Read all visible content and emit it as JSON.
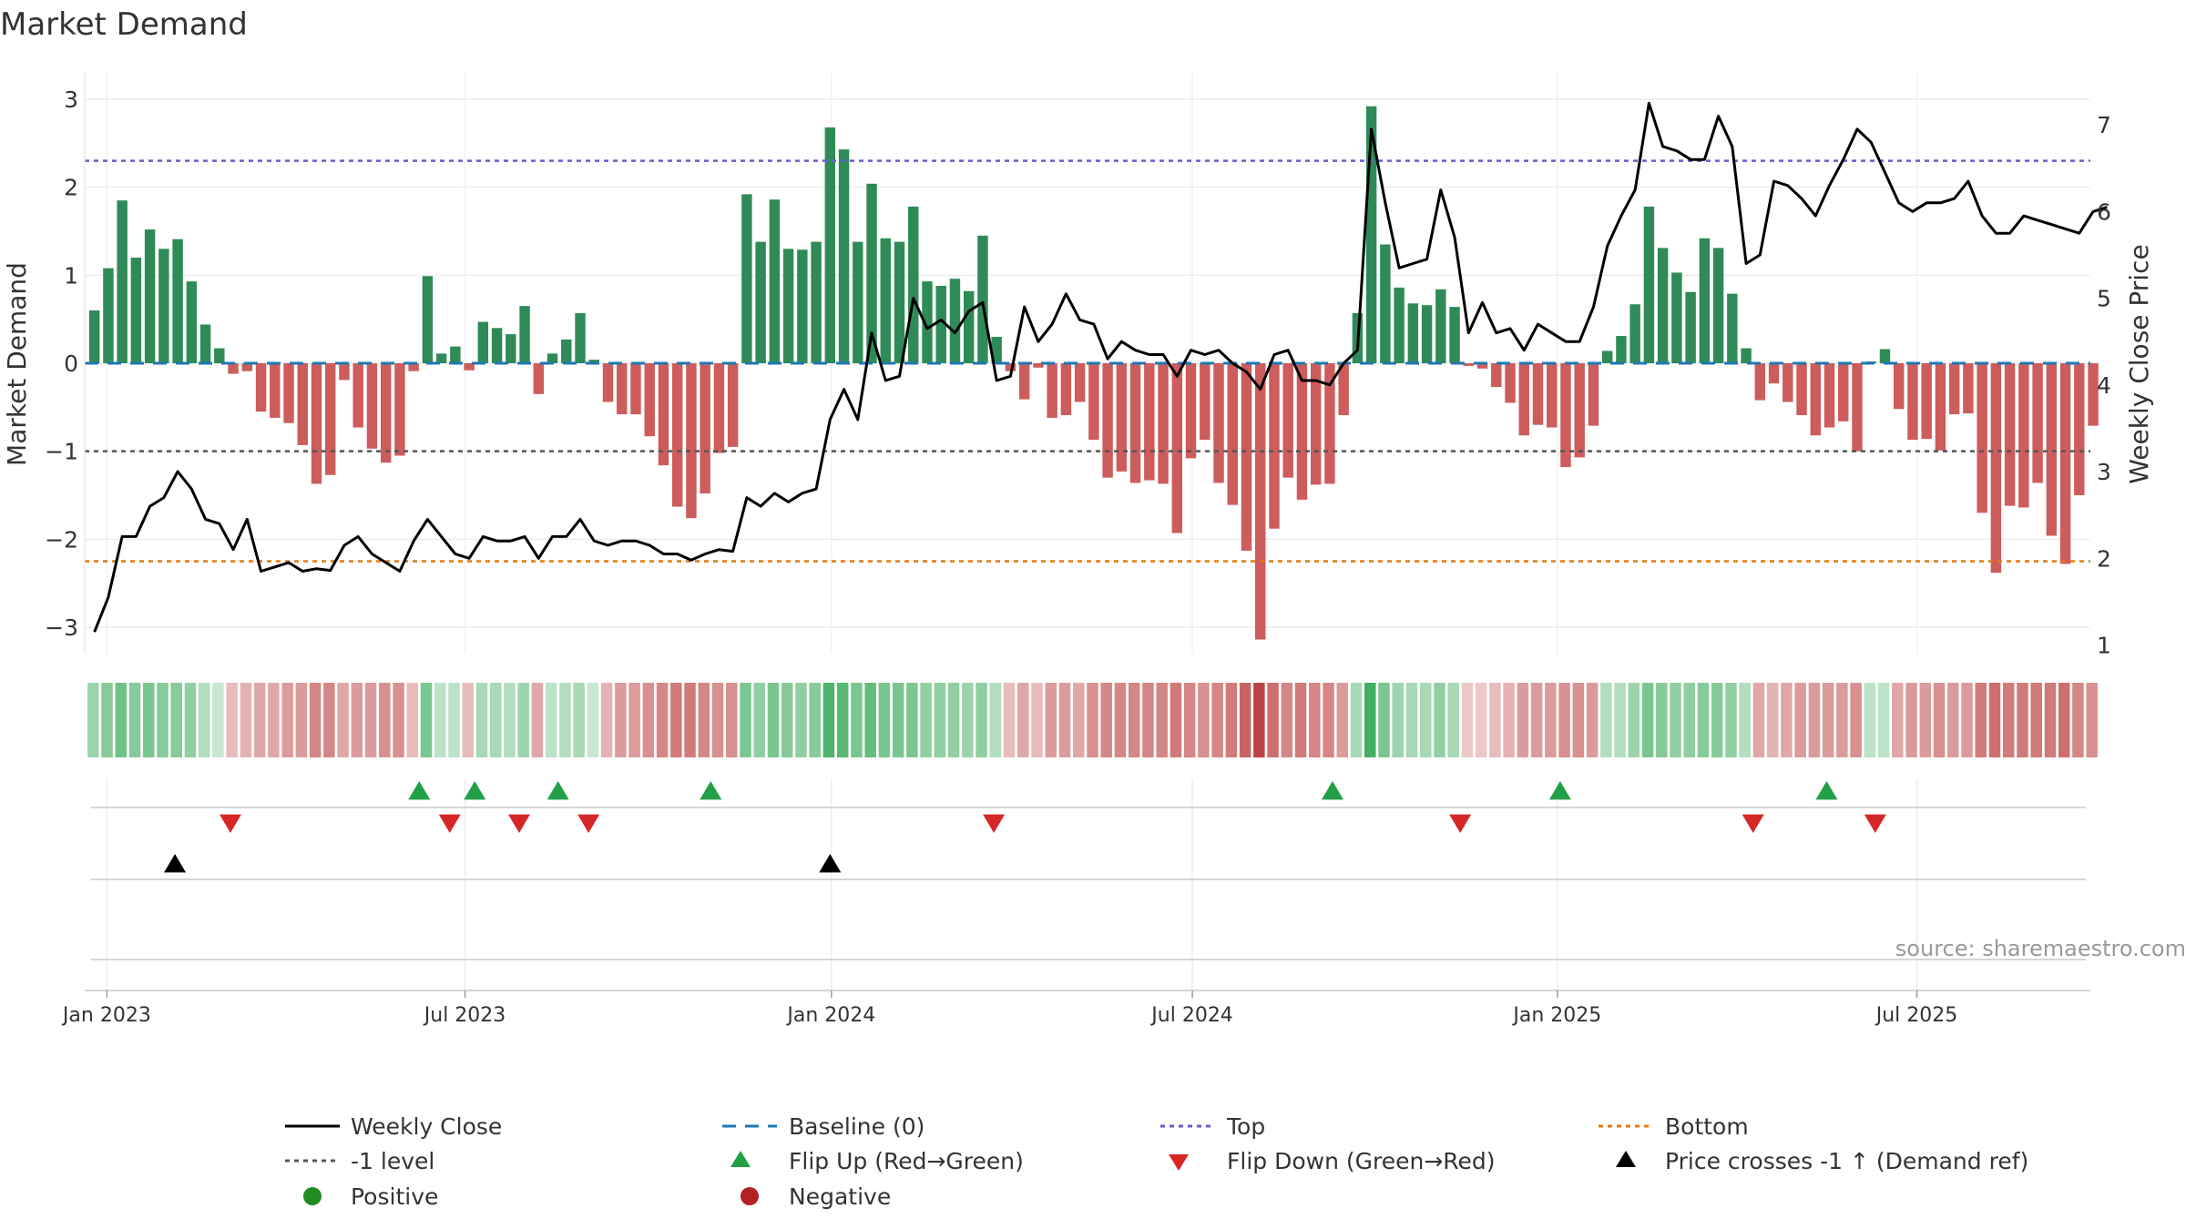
{
  "title": "Market Demand",
  "source": "source: sharemaestro.com",
  "colors": {
    "positive_bar": "#2e8b57",
    "negative_bar": "#cd5c5c",
    "price_line": "#000000",
    "baseline": "#1f77b4",
    "top_line": "#6a5acd",
    "minus1_line": "#555555",
    "bottom_line": "#e07b10",
    "flip_up": "#22a046",
    "flip_down": "#d62728",
    "price_cross": "#000000",
    "legend_positive": "#228b22",
    "legend_negative": "#b22222"
  },
  "chart_data": {
    "type": "bar",
    "title": "Market Demand",
    "ylabel_left": "Market Demand",
    "ylabel_right": "Weekly Close Price",
    "xlabel": "",
    "ylim_left": [
      -3.3,
      3.3
    ],
    "ylim_right": [
      0.9,
      7.6
    ],
    "yticks_left": [
      {
        "v": 3,
        "label": "3"
      },
      {
        "v": 2,
        "label": "2"
      },
      {
        "v": 1,
        "label": "1"
      },
      {
        "v": 0,
        "label": "0"
      },
      {
        "v": -1,
        "label": "−1"
      },
      {
        "v": -2,
        "label": "−2"
      },
      {
        "v": -3,
        "label": "−3"
      }
    ],
    "yticks_right": [
      {
        "v": 7,
        "label": "7"
      },
      {
        "v": 6,
        "label": "6"
      },
      {
        "v": 5,
        "label": "5"
      },
      {
        "v": 4,
        "label": "4"
      },
      {
        "v": 3,
        "label": "3"
      },
      {
        "v": 2,
        "label": "2"
      },
      {
        "v": 1,
        "label": "1"
      }
    ],
    "x_start": "2022-12-26",
    "x_week_range": [
      -0.7,
      143.8
    ],
    "x_ticks": [
      {
        "label": "Jan 2023",
        "week": 0.9
      },
      {
        "label": "Jul 2023",
        "week": 26.7
      },
      {
        "label": "Jan 2024",
        "week": 53.1
      },
      {
        "label": "Jul 2024",
        "week": 79.1
      },
      {
        "label": "Jan 2025",
        "week": 105.4
      },
      {
        "label": "Jul 2025",
        "week": 131.3
      }
    ],
    "levels": {
      "top": 2.3,
      "minus1": -1.0,
      "bottom": -2.25,
      "baseline": 0
    },
    "demand": [
      0.6,
      1.08,
      1.85,
      1.2,
      1.52,
      1.3,
      1.41,
      0.93,
      0.44,
      0.17,
      -0.12,
      -0.09,
      -0.55,
      -0.62,
      -0.68,
      -0.93,
      -1.37,
      -1.27,
      -0.19,
      -0.73,
      -0.97,
      -1.13,
      -1.05,
      -0.09,
      0.99,
      0.11,
      0.19,
      -0.08,
      0.47,
      0.4,
      0.33,
      0.65,
      -0.35,
      0.11,
      0.27,
      0.57,
      0.04,
      -0.44,
      -0.58,
      -0.58,
      -0.83,
      -1.16,
      -1.63,
      -1.76,
      -1.48,
      -1.02,
      -0.95,
      1.92,
      1.38,
      1.86,
      1.3,
      1.29,
      1.38,
      2.68,
      2.43,
      1.38,
      2.04,
      1.42,
      1.38,
      1.78,
      0.93,
      0.88,
      0.96,
      0.82,
      1.45,
      0.3,
      -0.09,
      -0.41,
      -0.05,
      -0.62,
      -0.59,
      -0.44,
      -0.87,
      -1.3,
      -1.23,
      -1.36,
      -1.33,
      -1.37,
      -1.93,
      -1.08,
      -0.87,
      -1.36,
      -1.61,
      -2.13,
      -3.14,
      -1.88,
      -1.3,
      -1.55,
      -1.38,
      -1.37,
      -0.59,
      0.57,
      2.92,
      1.35,
      0.86,
      0.68,
      0.66,
      0.84,
      0.64,
      -0.03,
      -0.06,
      -0.27,
      -0.45,
      -0.82,
      -0.7,
      -0.73,
      -1.18,
      -1.07,
      -0.71,
      0.14,
      0.31,
      0.67,
      1.78,
      1.31,
      1.03,
      0.81,
      1.42,
      1.31,
      0.79,
      0.17,
      -0.42,
      -0.23,
      -0.44,
      -0.59,
      -0.82,
      -0.73,
      -0.66,
      -1.0,
      0.02,
      0.16,
      -0.52,
      -0.87,
      -0.86,
      -0.99,
      -0.58,
      -0.57,
      -1.7,
      -2.38,
      -1.62,
      -1.64,
      -1.36,
      -1.96,
      -2.28,
      -1.5,
      -0.71
    ],
    "price": [
      1.15,
      1.55,
      2.25,
      2.25,
      2.6,
      2.7,
      3.0,
      2.8,
      2.45,
      2.4,
      2.1,
      2.45,
      1.85,
      1.9,
      1.95,
      1.85,
      1.88,
      1.86,
      2.15,
      2.25,
      2.05,
      1.95,
      1.85,
      2.2,
      2.45,
      2.25,
      2.05,
      2.0,
      2.25,
      2.2,
      2.2,
      2.25,
      2.0,
      2.25,
      2.25,
      2.45,
      2.2,
      2.15,
      2.2,
      2.2,
      2.15,
      2.05,
      2.05,
      1.98,
      2.05,
      2.1,
      2.08,
      2.7,
      2.6,
      2.75,
      2.65,
      2.75,
      2.8,
      3.6,
      3.95,
      3.6,
      4.6,
      4.05,
      4.1,
      5.0,
      4.65,
      4.75,
      4.6,
      4.85,
      4.95,
      4.05,
      4.1,
      4.9,
      4.5,
      4.7,
      5.05,
      4.75,
      4.7,
      4.3,
      4.5,
      4.4,
      4.35,
      4.35,
      4.1,
      4.4,
      4.35,
      4.4,
      4.25,
      4.15,
      3.95,
      4.35,
      4.4,
      4.05,
      4.05,
      4.0,
      4.25,
      4.4,
      6.95,
      6.1,
      5.35,
      5.4,
      5.45,
      6.25,
      5.7,
      4.6,
      4.95,
      4.6,
      4.65,
      4.4,
      4.7,
      4.6,
      4.5,
      4.5,
      4.9,
      5.6,
      5.95,
      6.25,
      7.25,
      6.75,
      6.7,
      6.6,
      6.6,
      7.1,
      6.75,
      5.4,
      5.5,
      6.35,
      6.3,
      6.15,
      5.95,
      6.3,
      6.6,
      6.95,
      6.8,
      6.45,
      6.1,
      6.0,
      6.1,
      6.1,
      6.15,
      6.35,
      5.95,
      5.75,
      5.75,
      5.95,
      5.9,
      5.85,
      5.8,
      5.75,
      6.0,
      6.05
    ],
    "heat_alpha": [
      0.45,
      0.55,
      0.65,
      0.55,
      0.6,
      0.55,
      0.55,
      0.5,
      0.35,
      0.25,
      0.3,
      0.35,
      0.4,
      0.4,
      0.45,
      0.45,
      0.55,
      0.55,
      0.4,
      0.45,
      0.45,
      0.5,
      0.5,
      0.3,
      0.6,
      0.3,
      0.3,
      0.3,
      0.4,
      0.4,
      0.35,
      0.45,
      0.4,
      0.3,
      0.35,
      0.4,
      0.25,
      0.35,
      0.45,
      0.45,
      0.5,
      0.55,
      0.6,
      0.6,
      0.55,
      0.5,
      0.5,
      0.6,
      0.5,
      0.6,
      0.55,
      0.5,
      0.55,
      0.8,
      0.75,
      0.6,
      0.7,
      0.6,
      0.6,
      0.6,
      0.5,
      0.5,
      0.5,
      0.45,
      0.5,
      0.35,
      0.3,
      0.4,
      0.3,
      0.45,
      0.45,
      0.4,
      0.5,
      0.55,
      0.55,
      0.55,
      0.55,
      0.55,
      0.6,
      0.55,
      0.5,
      0.55,
      0.6,
      0.7,
      0.85,
      0.65,
      0.55,
      0.6,
      0.55,
      0.55,
      0.45,
      0.4,
      0.85,
      0.6,
      0.45,
      0.4,
      0.4,
      0.5,
      0.4,
      0.25,
      0.25,
      0.3,
      0.35,
      0.45,
      0.45,
      0.45,
      0.5,
      0.5,
      0.45,
      0.35,
      0.35,
      0.45,
      0.6,
      0.55,
      0.5,
      0.5,
      0.55,
      0.55,
      0.5,
      0.35,
      0.4,
      0.35,
      0.4,
      0.45,
      0.45,
      0.45,
      0.45,
      0.5,
      0.3,
      0.3,
      0.4,
      0.45,
      0.45,
      0.5,
      0.45,
      0.45,
      0.6,
      0.65,
      0.6,
      0.6,
      0.6,
      0.6,
      0.65,
      0.55,
      0.5
    ],
    "flip_up_weeks": [
      23.4,
      27.4,
      33.4,
      44.4,
      89.2,
      105.6,
      124.8
    ],
    "flip_down_weeks": [
      9.8,
      25.6,
      30.6,
      35.6,
      64.8,
      98.4,
      119.5,
      128.3
    ],
    "price_cross_weeks": [
      5.8,
      53.0
    ]
  },
  "legend": [
    {
      "label": "Weekly Close",
      "symbol": "line-solid"
    },
    {
      "label": "Baseline (0)",
      "symbol": "line-dash"
    },
    {
      "label": "Top",
      "symbol": "line-dot"
    },
    {
      "label": "Bottom",
      "symbol": "line-dot"
    },
    {
      "label": "-1 level",
      "symbol": "line-dot"
    },
    {
      "label": "Flip Up (Red→Green)",
      "symbol": "triangle-up"
    },
    {
      "label": "Flip Down (Green→Red)",
      "symbol": "triangle-down"
    },
    {
      "label": "Price crosses -1 ↑ (Demand ref)",
      "symbol": "triangle-up"
    },
    {
      "label": "Positive",
      "symbol": "circle"
    },
    {
      "label": "Negative",
      "symbol": "circle"
    }
  ]
}
